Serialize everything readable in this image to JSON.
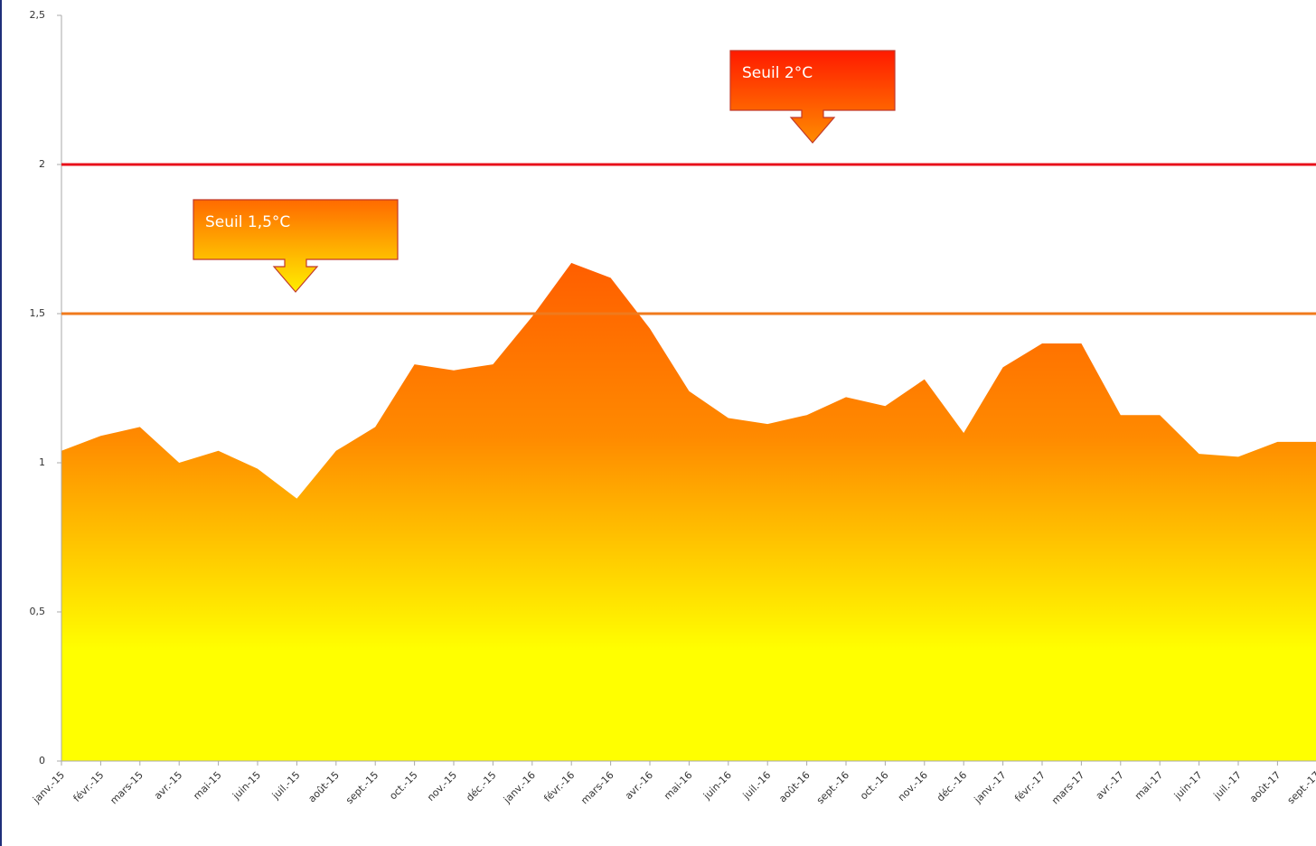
{
  "chart_data": {
    "type": "area",
    "categories": [
      "janv.-15",
      "févr.-15",
      "mars-15",
      "avr.-15",
      "mai-15",
      "juin-15",
      "juil.-15",
      "août-15",
      "sept.-15",
      "oct.-15",
      "nov.-15",
      "déc.-15",
      "janv.-16",
      "févr.-16",
      "mars-16",
      "avr.-16",
      "mai-16",
      "juin-16",
      "juil.-16",
      "août-16",
      "sept.-16",
      "oct.-16",
      "nov.-16",
      "déc.-16",
      "janv.-17",
      "févr.-17",
      "mars-17",
      "avr.-17",
      "mai-17",
      "juin-17",
      "juil.-17",
      "août-17",
      "sept.-17"
    ],
    "values": [
      1.04,
      1.09,
      1.12,
      1.0,
      1.04,
      0.98,
      0.88,
      1.04,
      1.12,
      1.33,
      1.31,
      1.33,
      1.49,
      1.67,
      1.62,
      1.45,
      1.24,
      1.15,
      1.13,
      1.16,
      1.22,
      1.19,
      1.28,
      1.1,
      1.32,
      1.4,
      1.4,
      1.16,
      1.16,
      1.03,
      1.02,
      1.07,
      1.07
    ],
    "ylim": [
      0,
      2.5
    ],
    "yticks": [
      0,
      {
        "value": 0.5,
        "label": "0,5"
      },
      {
        "value": 1,
        "label": "1"
      },
      {
        "value": 1.5,
        "label": "1,5"
      },
      {
        "value": 2,
        "label": "2"
      },
      {
        "value": 2.5,
        "label": "2,5"
      }
    ],
    "thresholds": [
      {
        "label": "Seuil 2°C",
        "value": 2,
        "color": "#e8101a"
      },
      {
        "label": "Seuil 1,5°C",
        "value": 1.5,
        "color": "#f07a1c"
      }
    ]
  }
}
